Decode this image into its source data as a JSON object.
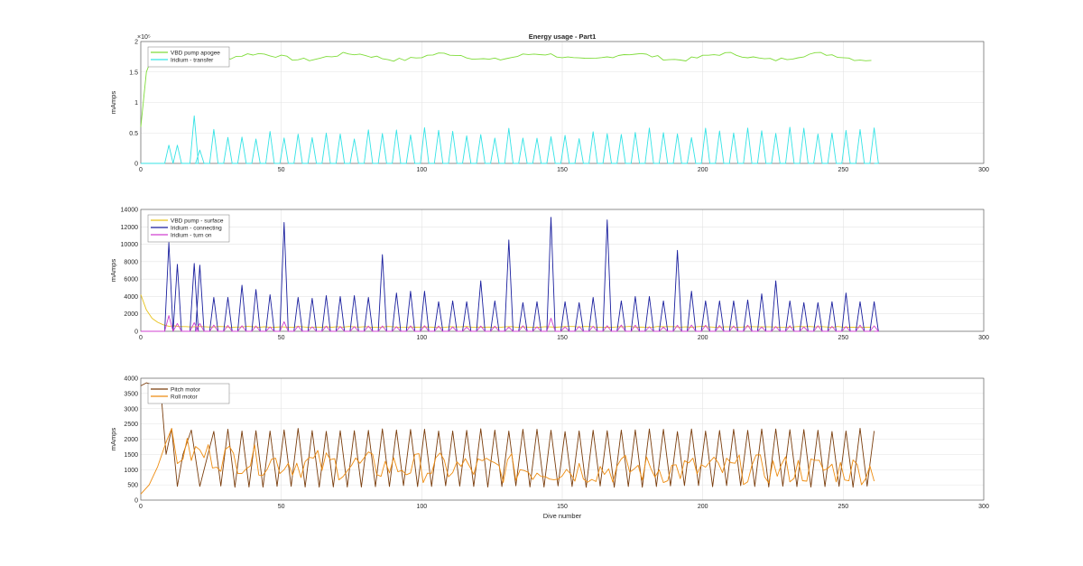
{
  "figure": {
    "title": "Energy usage - Part1"
  },
  "chart_data": [
    {
      "type": "line",
      "title": "Energy usage - Part1",
      "xlabel": "",
      "ylabel": "mAmps",
      "xlim": [
        0,
        300
      ],
      "ylim": [
        0,
        200000
      ],
      "xticks": [
        "0",
        "50",
        "100",
        "150",
        "200",
        "250",
        "300"
      ],
      "yticks": [
        "0",
        "0.5",
        "1",
        "1.5",
        "2"
      ],
      "exponent_label": "×10⁵",
      "grid": true,
      "legend": "top-left",
      "series": [
        {
          "name": "VBD pump apogee",
          "color": "#7fdc3a",
          "style": "smooth",
          "base": 175000,
          "amp": 5000,
          "early": [
            [
              0,
              60000
            ],
            [
              2,
              150000
            ],
            [
              4,
              175000
            ]
          ]
        },
        {
          "name": "Iridium - transfer",
          "color": "#34e3e6",
          "style": "spikes",
          "spike_peak": 50000,
          "base": 0,
          "peaks": [
            [
              10,
              30000
            ],
            [
              13,
              30000
            ],
            [
              19,
              78000
            ],
            [
              21,
              22000
            ]
          ]
        }
      ]
    },
    {
      "type": "line",
      "title": "",
      "xlabel": "",
      "ylabel": "mAmps",
      "xlim": [
        0,
        300
      ],
      "ylim": [
        0,
        14000
      ],
      "xticks": [
        "0",
        "50",
        "100",
        "150",
        "200",
        "250",
        "300"
      ],
      "yticks": [
        "0",
        "2000",
        "4000",
        "6000",
        "8000",
        "10000",
        "12000",
        "14000"
      ],
      "grid": true,
      "legend": "top-left",
      "series": [
        {
          "name": "VBD pump - surface",
          "color": "#e8c21a",
          "style": "decay",
          "start": 4200,
          "end": 500
        },
        {
          "name": "Iridium - connecting",
          "color": "#1a1f9e",
          "style": "spikes",
          "base": 0,
          "peaks": [
            [
              10,
              10200
            ],
            [
              13,
              7700
            ],
            [
              19,
              7800
            ],
            [
              21,
              7600
            ],
            [
              26,
              3900
            ],
            [
              31,
              3900
            ],
            [
              36,
              5300
            ],
            [
              41,
              4800
            ],
            [
              46,
              4200
            ],
            [
              51,
              12500
            ],
            [
              56,
              3900
            ],
            [
              61,
              3800
            ],
            [
              66,
              4100
            ],
            [
              71,
              4000
            ],
            [
              76,
              4100
            ],
            [
              81,
              3900
            ],
            [
              86,
              8800
            ],
            [
              91,
              4400
            ],
            [
              96,
              4600
            ],
            [
              101,
              4600
            ],
            [
              106,
              3400
            ],
            [
              111,
              3500
            ],
            [
              116,
              3400
            ],
            [
              121,
              5800
            ],
            [
              126,
              3500
            ],
            [
              131,
              10500
            ],
            [
              136,
              3300
            ],
            [
              141,
              3400
            ],
            [
              146,
              13100
            ],
            [
              151,
              3400
            ],
            [
              156,
              3300
            ],
            [
              161,
              3900
            ],
            [
              166,
              12800
            ],
            [
              171,
              3500
            ],
            [
              176,
              4000
            ],
            [
              181,
              4000
            ],
            [
              186,
              3500
            ],
            [
              191,
              9300
            ],
            [
              196,
              4600
            ],
            [
              201,
              3500
            ],
            [
              206,
              3500
            ],
            [
              211,
              3500
            ],
            [
              216,
              3600
            ],
            [
              221,
              4300
            ],
            [
              226,
              5800
            ],
            [
              231,
              3500
            ],
            [
              236,
              3300
            ],
            [
              241,
              3300
            ],
            [
              246,
              3400
            ],
            [
              251,
              4400
            ],
            [
              256,
              3400
            ],
            [
              261,
              3400
            ]
          ]
        },
        {
          "name": "Iridium - turn on",
          "color": "#d040d0",
          "style": "spikes",
          "spike_peak": 600,
          "base": 0,
          "peaks": [
            [
              10,
              1800
            ],
            [
              13,
              900
            ],
            [
              19,
              1000
            ],
            [
              21,
              900
            ],
            [
              51,
              1100
            ],
            [
              146,
              1500
            ]
          ]
        }
      ]
    },
    {
      "type": "line",
      "title": "",
      "xlabel": "Dive number",
      "ylabel": "mAmps",
      "xlim": [
        0,
        300
      ],
      "ylim": [
        0,
        4000
      ],
      "xticks": [
        "0",
        "50",
        "100",
        "150",
        "200",
        "250",
        "300"
      ],
      "yticks": [
        "0",
        "500",
        "1000",
        "1500",
        "2000",
        "2500",
        "3000",
        "3500",
        "4000"
      ],
      "grid": true,
      "legend": "top-left",
      "series": [
        {
          "name": "Pitch motor",
          "color": "#7a3d0c",
          "style": "saw",
          "high": 2300,
          "low": 450,
          "early": [
            [
              0,
              3750
            ],
            [
              2,
              3850
            ],
            [
              4,
              3800
            ],
            [
              7,
              3750
            ],
            [
              9,
              1500
            ],
            [
              11,
              2350
            ],
            [
              13,
              450
            ],
            [
              15,
              1500
            ],
            [
              18,
              2300
            ],
            [
              21,
              450
            ]
          ]
        },
        {
          "name": "Roll motor",
          "color": "#ee8c10",
          "style": "noisy",
          "base": 1000,
          "amp": 500,
          "early": [
            [
              0,
              200
            ],
            [
              3,
              500
            ],
            [
              6,
              1100
            ],
            [
              9,
              1900
            ],
            [
              11,
              2350
            ],
            [
              13,
              1200
            ]
          ]
        }
      ]
    }
  ]
}
